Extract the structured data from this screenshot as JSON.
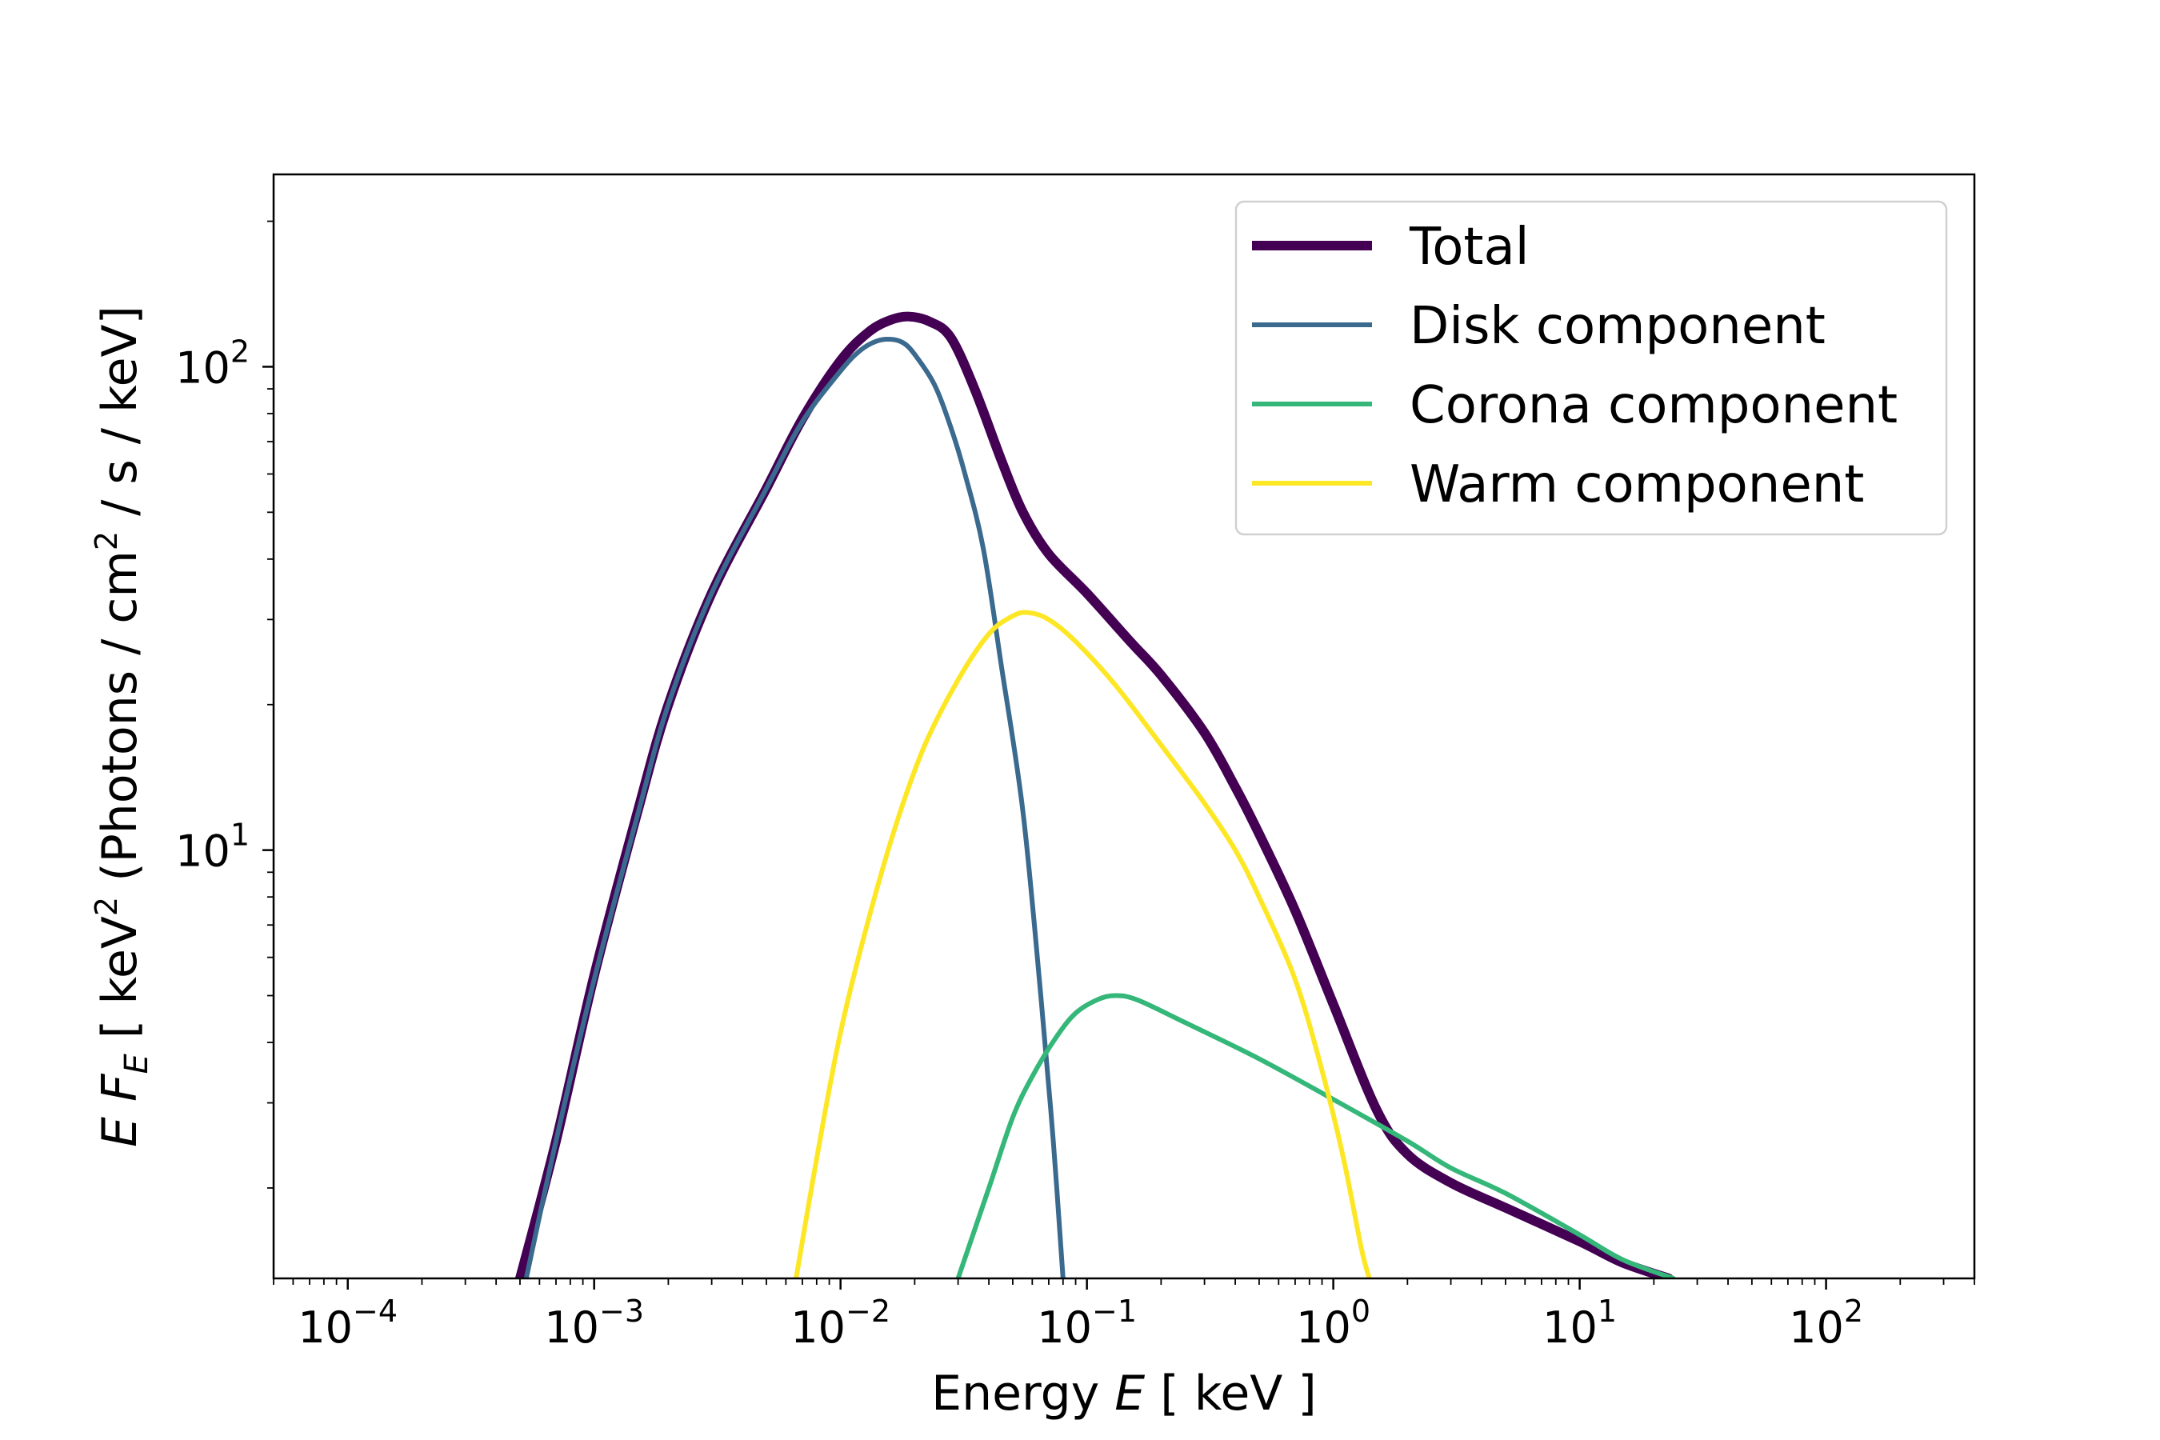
{
  "chart_data": {
    "type": "line",
    "xlabel_prefix": "Energy ",
    "xlabel_var": "E",
    "xlabel_unit": " [ keV ]",
    "ylabel_var": "E F",
    "ylabel_sub": "E",
    "ylabel_unit_a": "  [ keV",
    "ylabel_sup_a": "2",
    "ylabel_unit_b": " (Photons / cm",
    "ylabel_sup_b": "2",
    "ylabel_unit_c": " / s / keV]",
    "x_scale": "log",
    "y_scale": "log",
    "xlim": [
      5e-05,
      400
    ],
    "ylim": [
      1.3,
      250
    ],
    "x_ticks": [
      {
        "value": 0.0001,
        "base": "10",
        "exp": "−4"
      },
      {
        "value": 0.001,
        "base": "10",
        "exp": "−3"
      },
      {
        "value": 0.01,
        "base": "10",
        "exp": "−2"
      },
      {
        "value": 0.1,
        "base": "10",
        "exp": "−1"
      },
      {
        "value": 1,
        "base": "10",
        "exp": "0"
      },
      {
        "value": 10,
        "base": "10",
        "exp": "1"
      },
      {
        "value": 100,
        "base": "10",
        "exp": "2"
      }
    ],
    "y_ticks": [
      {
        "value": 10,
        "base": "10",
        "exp": "1"
      },
      {
        "value": 100,
        "base": "10",
        "exp": "2"
      }
    ],
    "grid": false,
    "legend_position": "top-right",
    "series": [
      {
        "name": "Total",
        "color": "#440154",
        "width": 12,
        "points": [
          [
            0.0005,
            1.3
          ],
          [
            0.0007,
            2.5
          ],
          [
            0.001,
            5.5
          ],
          [
            0.0015,
            12
          ],
          [
            0.002,
            20
          ],
          [
            0.003,
            34
          ],
          [
            0.005,
            56
          ],
          [
            0.007,
            78
          ],
          [
            0.01,
            103
          ],
          [
            0.013,
            118
          ],
          [
            0.016,
            125
          ],
          [
            0.019,
            127
          ],
          [
            0.023,
            124
          ],
          [
            0.028,
            115
          ],
          [
            0.035,
            90
          ],
          [
            0.045,
            64
          ],
          [
            0.055,
            50
          ],
          [
            0.07,
            41
          ],
          [
            0.1,
            34
          ],
          [
            0.15,
            27
          ],
          [
            0.2,
            23
          ],
          [
            0.3,
            17.5
          ],
          [
            0.4,
            13.5
          ],
          [
            0.5,
            10.8
          ],
          [
            0.7,
            7.5
          ],
          [
            1.0,
            4.8
          ],
          [
            1.5,
            2.9
          ],
          [
            2.0,
            2.35
          ],
          [
            3.0,
            2.05
          ],
          [
            5.0,
            1.82
          ],
          [
            10,
            1.55
          ],
          [
            15,
            1.4
          ],
          [
            23,
            1.3
          ]
        ]
      },
      {
        "name": "Disk component",
        "color": "#3b6a8f",
        "width": 6,
        "points": [
          [
            0.00053,
            1.3
          ],
          [
            0.0007,
            2.5
          ],
          [
            0.001,
            5.4
          ],
          [
            0.0015,
            11.8
          ],
          [
            0.002,
            20
          ],
          [
            0.003,
            34
          ],
          [
            0.005,
            56
          ],
          [
            0.007,
            77
          ],
          [
            0.01,
            98
          ],
          [
            0.012,
            108
          ],
          [
            0.014,
            113
          ],
          [
            0.016,
            114
          ],
          [
            0.018,
            112
          ],
          [
            0.02,
            106
          ],
          [
            0.024,
            92
          ],
          [
            0.028,
            75
          ],
          [
            0.032,
            60
          ],
          [
            0.038,
            42
          ],
          [
            0.045,
            24
          ],
          [
            0.055,
            12
          ],
          [
            0.065,
            5
          ],
          [
            0.073,
            2.5
          ],
          [
            0.08,
            1.3
          ]
        ]
      },
      {
        "name": "Corona component",
        "color": "#35b779",
        "width": 6,
        "points": [
          [
            0.03,
            1.3
          ],
          [
            0.04,
            2.0
          ],
          [
            0.05,
            2.8
          ],
          [
            0.06,
            3.4
          ],
          [
            0.075,
            4.1
          ],
          [
            0.09,
            4.6
          ],
          [
            0.11,
            4.9
          ],
          [
            0.13,
            5.0
          ],
          [
            0.16,
            4.9
          ],
          [
            0.25,
            4.4
          ],
          [
            0.5,
            3.7
          ],
          [
            1.0,
            3.05
          ],
          [
            2.0,
            2.5
          ],
          [
            3.0,
            2.2
          ],
          [
            5.0,
            1.95
          ],
          [
            10,
            1.6
          ],
          [
            15,
            1.42
          ],
          [
            24,
            1.3
          ]
        ]
      },
      {
        "name": "Warm component",
        "color": "#fde725",
        "width": 6,
        "points": [
          [
            0.0066,
            1.3
          ],
          [
            0.008,
            2.3
          ],
          [
            0.01,
            4.2
          ],
          [
            0.013,
            7.2
          ],
          [
            0.017,
            11.5
          ],
          [
            0.022,
            16.5
          ],
          [
            0.03,
            22.5
          ],
          [
            0.04,
            28
          ],
          [
            0.05,
            30.5
          ],
          [
            0.058,
            31
          ],
          [
            0.07,
            30
          ],
          [
            0.09,
            27
          ],
          [
            0.13,
            22
          ],
          [
            0.2,
            16.5
          ],
          [
            0.3,
            12.5
          ],
          [
            0.4,
            10
          ],
          [
            0.5,
            8
          ],
          [
            0.7,
            5.4
          ],
          [
            0.9,
            3.5
          ],
          [
            1.1,
            2.3
          ],
          [
            1.3,
            1.5
          ],
          [
            1.4,
            1.3
          ]
        ]
      }
    ]
  }
}
